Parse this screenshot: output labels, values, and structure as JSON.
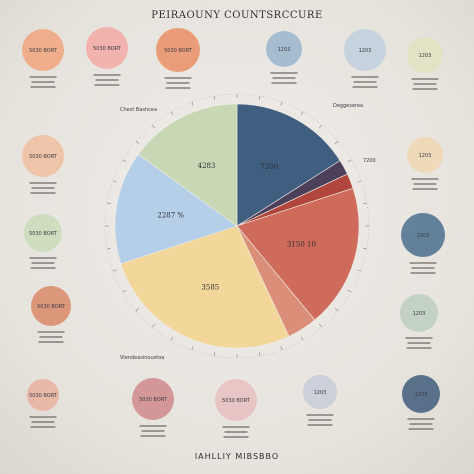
{
  "title": "PEIRAOUNY COUNTSRCCURE",
  "footer": "IAHLLIY MIBSBBO",
  "chart_data": {
    "type": "pie",
    "title": "PEIRAOUNY COUNTSRCCURE",
    "slices": [
      {
        "label": "7200",
        "value": 16,
        "color": "#3f5e80"
      },
      {
        "label": "",
        "value": 2,
        "color": "#4c3f5a"
      },
      {
        "label": "",
        "value": 2,
        "color": "#b0463c"
      },
      {
        "label": "3150 10",
        "value": 19,
        "color": "#cf6b5a"
      },
      {
        "label": "",
        "value": 4,
        "color": "#dc8f78"
      },
      {
        "label": "3585",
        "value": 27,
        "color": "#f3d69a"
      },
      {
        "label": "2287 %",
        "value": 15,
        "color": "#b5cfe8"
      },
      {
        "label": "4283",
        "value": 15,
        "color": "#c8d8b4"
      }
    ],
    "annotations": [
      "Chest Bashcea",
      "Deggeserea",
      "7200",
      "Viendeasinoustoa"
    ]
  },
  "bubbles": {
    "left": [
      {
        "value": "5030 BORT",
        "color": "#f0c0a0"
      },
      {
        "value": "5030 BORT",
        "color": "#f6b7bd"
      },
      {
        "value": "5030 BORT",
        "color": "#f4c48a"
      },
      {
        "value": "5030 BORT",
        "color": "#c9dcb7"
      },
      {
        "value": "5030 BORT",
        "color": "#d98a6a"
      },
      {
        "value": "5030 BORT",
        "color": "#e9b0a0"
      }
    ],
    "right": [
      {
        "value": "1203",
        "color": "#2f4f73"
      },
      {
        "value": "1203",
        "color": "#a9c0d8"
      },
      {
        "value": "1203",
        "color": "#e0e3bf"
      },
      {
        "value": "1203",
        "color": "#efd7b2"
      },
      {
        "value": "1203",
        "color": "#4b6f8e"
      },
      {
        "value": "1203",
        "color": "#bccfbf"
      },
      {
        "value": "1203",
        "color": "#3f5c7a"
      }
    ],
    "top": [
      {
        "value": "5030 BORT",
        "color": "#f1a57c"
      },
      {
        "value": "5030 BORT",
        "color": "#f3a9a4"
      },
      {
        "value": "5030 BORT",
        "color": "#ea8f66"
      },
      {
        "value": "1203",
        "color": "#9ab5cc"
      },
      {
        "value": "1203",
        "color": "#bfcfde"
      }
    ],
    "bottom": [
      {
        "value": "5030 BORT",
        "color": "#cf8a8c"
      },
      {
        "value": "5030 BORT",
        "color": "#e6b0a9"
      },
      {
        "value": "5030 BORT",
        "color": "#e7bfc0"
      },
      {
        "value": "1203",
        "color": "#c7cdd8"
      }
    ]
  }
}
